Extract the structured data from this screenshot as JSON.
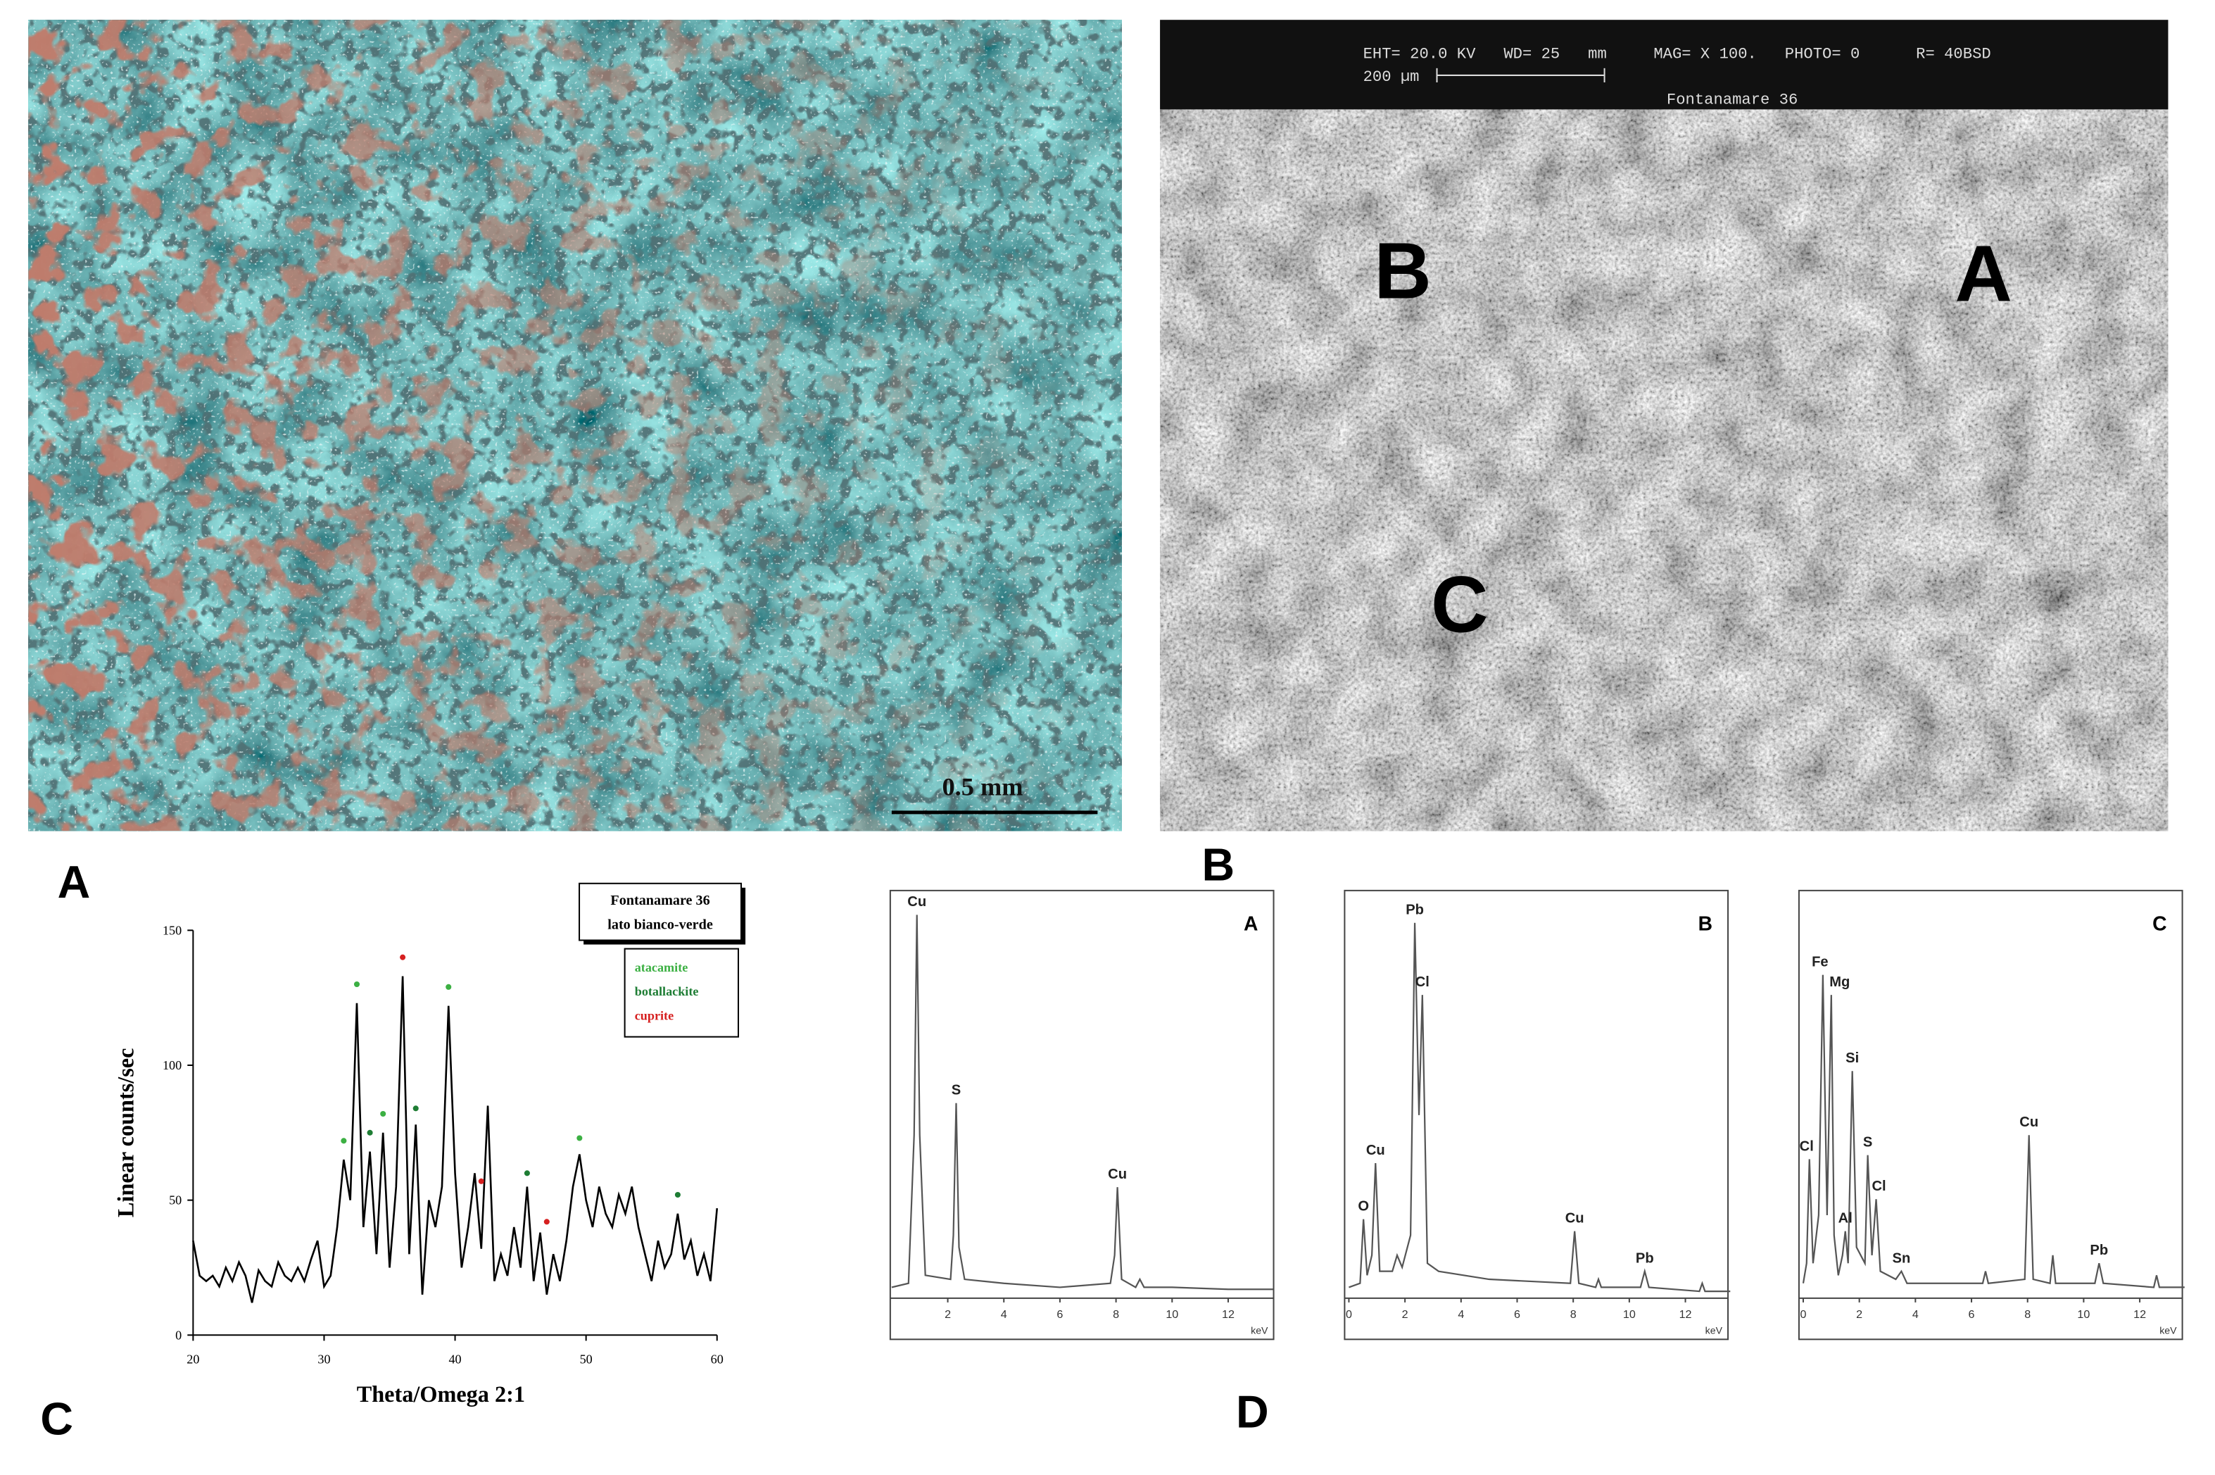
{
  "photo_a": {
    "scale_label": "0.5 mm"
  },
  "sem_b": {
    "header": "EHT= 20.0 KV   WD= 25   mm     MAG= X 100.   PHOTO= 0      R= 40BSD",
    "scale_label": "200 µm",
    "sample": "Fontanamare 36",
    "region_labels": [
      "B",
      "A",
      "C"
    ]
  },
  "panel_labels": [
    "A",
    "B",
    "C",
    "D"
  ],
  "chart_data": [
    {
      "type": "line",
      "x_label": "Theta/Omega 2:1",
      "y_label": "Linear counts/sec",
      "legend_title": [
        "Fontanamare 36",
        "lato bianco-verde"
      ],
      "phases": [
        {
          "name": "atacamite",
          "color": "#3cb043"
        },
        {
          "name": "botallackite",
          "color": "#1e7d34"
        },
        {
          "name": "cuprite",
          "color": "#d62020"
        }
      ],
      "color": "#000000",
      "xlim": [
        20,
        60
      ],
      "xticks": [
        20,
        30,
        40,
        50,
        60
      ],
      "ylim": [
        0,
        150
      ],
      "yticks": [
        0,
        50,
        100,
        150
      ],
      "x": [
        20,
        20.5,
        21,
        21.5,
        22,
        22.5,
        23,
        23.5,
        24,
        24.5,
        25,
        25.5,
        26,
        26.5,
        27,
        27.5,
        28,
        28.5,
        29,
        29.5,
        30,
        30.5,
        31,
        31.5,
        32,
        32.5,
        33,
        33.5,
        34,
        34.5,
        35,
        35.5,
        36,
        36.5,
        37,
        37.5,
        38,
        38.5,
        39,
        39.5,
        40,
        40.5,
        41,
        41.5,
        42,
        42.5,
        43,
        43.5,
        44,
        44.5,
        45,
        45.5,
        46,
        46.5,
        47,
        47.5,
        48,
        48.5,
        49,
        49.5,
        50,
        50.5,
        51,
        51.5,
        52,
        52.5,
        53,
        53.5,
        54,
        54.5,
        55,
        55.5,
        56,
        56.5,
        57,
        57.5,
        58,
        58.5,
        59,
        59.5,
        60
      ],
      "values": [
        35,
        22,
        20,
        22,
        18,
        25,
        20,
        27,
        22,
        12,
        24,
        20,
        18,
        27,
        22,
        20,
        25,
        20,
        28,
        35,
        18,
        22,
        40,
        65,
        50,
        123,
        40,
        68,
        30,
        75,
        25,
        55,
        133,
        30,
        78,
        15,
        50,
        40,
        55,
        122,
        60,
        25,
        40,
        60,
        32,
        85,
        20,
        30,
        22,
        40,
        25,
        55,
        20,
        38,
        15,
        30,
        20,
        35,
        55,
        67,
        50,
        40,
        55,
        45,
        40,
        52,
        45,
        55,
        40,
        30,
        20,
        35,
        25,
        30,
        45,
        28,
        35,
        22,
        30,
        20,
        47
      ],
      "markers": [
        {
          "x": 31.5,
          "y": 72,
          "color": "#3cb043"
        },
        {
          "x": 32.5,
          "y": 130,
          "color": "#3cb043"
        },
        {
          "x": 33.5,
          "y": 75,
          "color": "#1e7d34"
        },
        {
          "x": 34.5,
          "y": 82,
          "color": "#3cb043"
        },
        {
          "x": 36,
          "y": 140,
          "color": "#d62020"
        },
        {
          "x": 37,
          "y": 84,
          "color": "#1e7d34"
        },
        {
          "x": 39.5,
          "y": 129,
          "color": "#3cb043"
        },
        {
          "x": 42,
          "y": 57,
          "color": "#d62020"
        },
        {
          "x": 45.5,
          "y": 60,
          "color": "#1e7d34"
        },
        {
          "x": 47,
          "y": 42,
          "color": "#d62020"
        },
        {
          "x": 49.5,
          "y": 73,
          "color": "#3cb043"
        },
        {
          "x": 57,
          "y": 52,
          "color": "#1e7d34"
        }
      ]
    },
    {
      "type": "line",
      "corner_label": "A",
      "x_label": "keV",
      "color": "#555555",
      "xlim": [
        0,
        13.6
      ],
      "xticks": [
        2,
        4,
        6,
        8,
        10,
        12
      ],
      "ylim": [
        0,
        100
      ],
      "x": [
        0,
        0.6,
        0.8,
        0.9,
        1.0,
        1.2,
        2.1,
        2.2,
        2.3,
        2.4,
        2.6,
        4,
        6,
        7.8,
        7.95,
        8.05,
        8.2,
        8.7,
        8.85,
        9.0,
        10,
        12,
        13.6
      ],
      "values": [
        2,
        3,
        40,
        95,
        40,
        5,
        4,
        15,
        48,
        12,
        4,
        3,
        2,
        3,
        10,
        27,
        4,
        2,
        4,
        2,
        2,
        1.5,
        1.5
      ],
      "annotations": [
        {
          "text": "Cu",
          "x": 0.9,
          "y": 95
        },
        {
          "text": "S",
          "x": 2.3,
          "y": 48
        },
        {
          "text": "Cu",
          "x": 8.05,
          "y": 27
        }
      ]
    },
    {
      "type": "line",
      "corner_label": "B",
      "x_label": "keV",
      "color": "#555555",
      "xlim": [
        0,
        13.6
      ],
      "xticks": [
        0,
        2,
        4,
        6,
        8,
        10,
        12
      ],
      "ylim": [
        0,
        100
      ],
      "x": [
        0,
        0.4,
        0.52,
        0.65,
        0.82,
        0.95,
        1.1,
        1.55,
        1.72,
        1.9,
        2.2,
        2.35,
        2.5,
        2.62,
        2.8,
        3.2,
        5,
        7.9,
        8.05,
        8.2,
        8.8,
        8.9,
        9.0,
        10.4,
        10.55,
        10.7,
        12.5,
        12.6,
        12.7,
        13.6
      ],
      "values": [
        2,
        3,
        19,
        5,
        10,
        33,
        6,
        6,
        10,
        7,
        15,
        93,
        45,
        75,
        8,
        6,
        4,
        3,
        16,
        3,
        2,
        4,
        2,
        2,
        6,
        2,
        1,
        3,
        1,
        1
      ],
      "annotations": [
        {
          "text": "O",
          "x": 0.52,
          "y": 19
        },
        {
          "text": "Cu",
          "x": 0.95,
          "y": 33
        },
        {
          "text": "Pb",
          "x": 2.35,
          "y": 93
        },
        {
          "text": "Cl",
          "x": 2.62,
          "y": 75
        },
        {
          "text": "Cu",
          "x": 8.05,
          "y": 16
        },
        {
          "text": "Pb",
          "x": 10.55,
          "y": 6
        }
      ]
    },
    {
      "type": "line",
      "corner_label": "C",
      "x_label": "keV",
      "color": "#555555",
      "xlim": [
        0,
        13.6
      ],
      "xticks": [
        0,
        2,
        4,
        6,
        8,
        10,
        12
      ],
      "ylim": [
        0,
        100
      ],
      "x": [
        0,
        0.12,
        0.22,
        0.35,
        0.55,
        0.7,
        0.85,
        1.0,
        1.1,
        1.25,
        1.4,
        1.5,
        1.6,
        1.75,
        1.9,
        2.2,
        2.3,
        2.45,
        2.6,
        2.75,
        3.3,
        3.5,
        3.7,
        5,
        6.4,
        6.5,
        6.6,
        7.9,
        8.05,
        8.2,
        8.8,
        8.9,
        9.0,
        10.4,
        10.55,
        10.7,
        12.5,
        12.6,
        12.7,
        13.6
      ],
      "values": [
        3,
        8,
        34,
        8,
        20,
        80,
        20,
        75,
        15,
        5,
        10,
        16,
        8,
        56,
        12,
        8,
        35,
        10,
        24,
        6,
        4,
        6,
        3,
        3,
        3,
        6,
        3,
        4,
        40,
        4,
        3,
        10,
        3,
        3,
        8,
        3,
        2,
        5,
        2,
        2
      ],
      "annotations": [
        {
          "text": "Cl",
          "x": 0.12,
          "y": 34
        },
        {
          "text": "Fe",
          "x": 0.6,
          "y": 80
        },
        {
          "text": "Mg",
          "x": 1.3,
          "y": 75
        },
        {
          "text": "Al",
          "x": 1.5,
          "y": 16
        },
        {
          "text": "Si",
          "x": 1.75,
          "y": 56
        },
        {
          "text": "S",
          "x": 2.3,
          "y": 35
        },
        {
          "text": "Cl",
          "x": 2.7,
          "y": 24
        },
        {
          "text": "Sn",
          "x": 3.5,
          "y": 6
        },
        {
          "text": "Cu",
          "x": 8.05,
          "y": 40
        },
        {
          "text": "Pb",
          "x": 10.55,
          "y": 8
        }
      ]
    }
  ]
}
